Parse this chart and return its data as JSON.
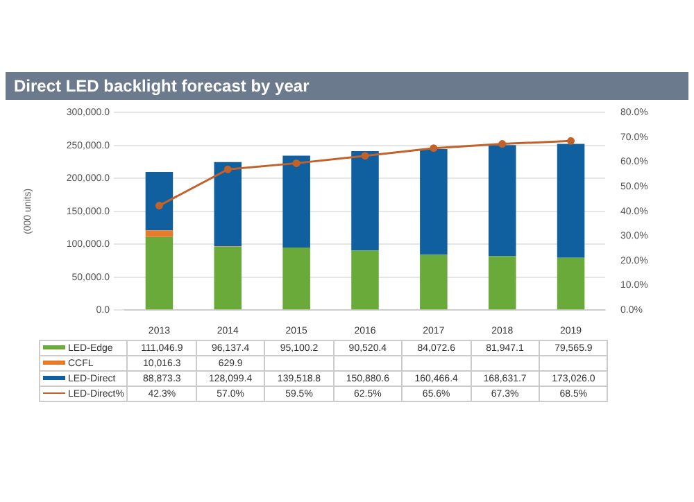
{
  "chart_data": {
    "type": "bar",
    "title": "Direct LED backlight forecast by year",
    "ylabel": "(000 units)",
    "categories": [
      "2013",
      "2014",
      "2015",
      "2016",
      "2017",
      "2018",
      "2019"
    ],
    "stacked": true,
    "series": [
      {
        "name": "LED-Edge",
        "color": "#6aaa3a",
        "values": [
          111046.9,
          96137.4,
          95100.2,
          90520.4,
          84072.6,
          81947.1,
          79565.9
        ],
        "value_labels": [
          "111,046.9",
          "96,137.4",
          "95,100.2",
          "90,520.4",
          "84,072.6",
          "81,947.1",
          "79,565.9"
        ]
      },
      {
        "name": "CCFL",
        "color": "#e87b2a",
        "values": [
          10016.3,
          629.9,
          null,
          null,
          null,
          null,
          null
        ],
        "value_labels": [
          "10,016.3",
          "629.9",
          null,
          null,
          null,
          null,
          null
        ]
      },
      {
        "name": "LED-Direct",
        "color": "#1060a0",
        "values": [
          88873.3,
          128099.4,
          139518.8,
          150880.6,
          160466.4,
          168631.7,
          173026.0
        ],
        "value_labels": [
          "88,873.3",
          "128,099.4",
          "139,518.8",
          "150,880.6",
          "160,466.4",
          "168,631.7",
          "173,026.0"
        ]
      },
      {
        "name": "LED-Direct%",
        "type": "line",
        "axis": "y2",
        "color": "#c0622a",
        "values": [
          42.3,
          57.0,
          59.5,
          62.5,
          65.6,
          67.3,
          68.5
        ],
        "value_labels": [
          "42.3%",
          "57.0%",
          "59.5%",
          "62.5%",
          "65.6%",
          "67.3%",
          "68.5%"
        ]
      }
    ],
    "ylim": [
      0,
      300000
    ],
    "yticks": [
      {
        "value": 0,
        "label": "0.0"
      },
      {
        "value": 50000,
        "label": "50,000.0"
      },
      {
        "value": 100000,
        "label": "100,000.0"
      },
      {
        "value": 150000,
        "label": "150,000.0"
      },
      {
        "value": 200000,
        "label": "200,000.0"
      },
      {
        "value": 250000,
        "label": "250,000.0"
      },
      {
        "value": 300000,
        "label": "300,000.0"
      }
    ],
    "y2lim": [
      0,
      80
    ],
    "y2ticks": [
      {
        "value": 0,
        "label": "0.0%"
      },
      {
        "value": 10,
        "label": "10.0%"
      },
      {
        "value": 20,
        "label": "20.0%"
      },
      {
        "value": 30,
        "label": "30.0%"
      },
      {
        "value": 40,
        "label": "40.0%"
      },
      {
        "value": 50,
        "label": "50.0%"
      },
      {
        "value": 60,
        "label": "60.0%"
      },
      {
        "value": 70,
        "label": "70.0%"
      },
      {
        "value": 80,
        "label": "80.0%"
      }
    ],
    "grid": "y",
    "legend": "bottom",
    "marker": "circle",
    "line_style": "solid"
  }
}
